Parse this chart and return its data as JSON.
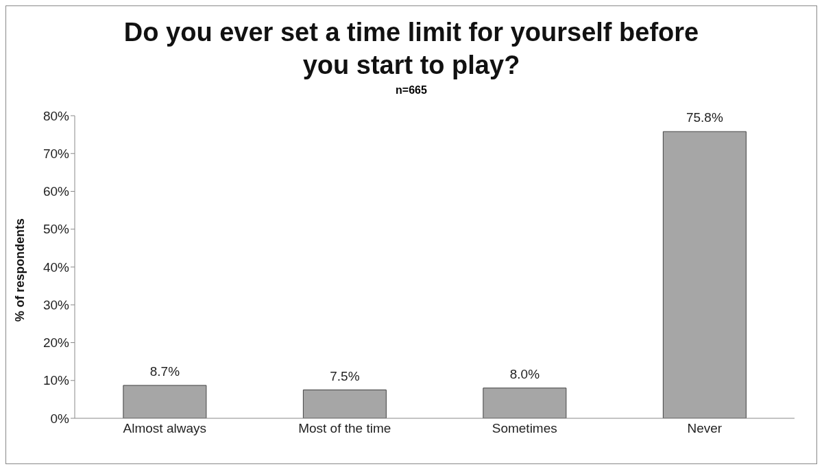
{
  "chart_data": {
    "type": "bar",
    "title": "Do you ever set a time limit for yourself before you start to play?",
    "subtitle": "n=665",
    "ylabel": "% of respondents",
    "categories": [
      "Almost always",
      "Most of the time",
      "Sometimes",
      "Never"
    ],
    "values": [
      8.7,
      7.5,
      8.0,
      75.8
    ],
    "value_labels": [
      "8.7%",
      "7.5%",
      "8.0%",
      "75.8%"
    ],
    "color": "#a6a6a6",
    "ylim": [
      0,
      80
    ],
    "yticks": [
      {
        "value": 0,
        "label": "0%"
      },
      {
        "value": 10,
        "label": "10%"
      },
      {
        "value": 20,
        "label": "20%"
      },
      {
        "value": 30,
        "label": "30%"
      },
      {
        "value": 40,
        "label": "40%"
      },
      {
        "value": 50,
        "label": "50%"
      },
      {
        "value": 60,
        "label": "60%"
      },
      {
        "value": 70,
        "label": "70%"
      },
      {
        "value": 80,
        "label": "80%"
      }
    ],
    "grid": false,
    "legend": false
  }
}
